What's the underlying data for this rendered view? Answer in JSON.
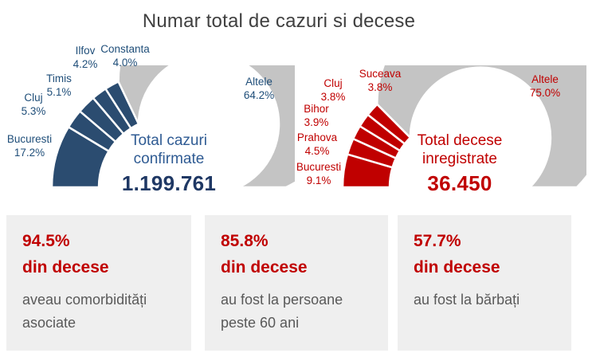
{
  "title": "Numar total de cazuri si decese",
  "colors": {
    "cases_accent": "#2B4C70",
    "deaths_accent": "#C00000",
    "other_gray": "#C4C4C4",
    "cases_label_text": "#1F4E79",
    "deaths_label_text": "#C00000",
    "cases_center_text": "#2F5B93",
    "cases_total_text": "#1F3864",
    "title_text": "#404040",
    "body_text": "#595959",
    "card_background": "#EFEFEF"
  },
  "chart_data": [
    {
      "type": "pie",
      "variant": "half-donut",
      "series_name": "cazuri confirmate",
      "center_line1": "Total cazuri",
      "center_line2": "confirmate",
      "total": "1.199.761",
      "angle_span_deg": 180,
      "legend_position": "outside-labels",
      "segments": [
        {
          "name": "Bucuresti",
          "value": 17.2,
          "label": "17.2%",
          "other": false
        },
        {
          "name": "Cluj",
          "value": 5.3,
          "label": "5.3%",
          "other": false
        },
        {
          "name": "Timis",
          "value": 5.1,
          "label": "5.1%",
          "other": false
        },
        {
          "name": "Ilfov",
          "value": 4.2,
          "label": "4.2%",
          "other": false
        },
        {
          "name": "Constanta",
          "value": 4.0,
          "label": "4.0%",
          "other": false
        },
        {
          "name": "Altele",
          "value": 64.2,
          "label": "64.2%",
          "other": true
        }
      ]
    },
    {
      "type": "pie",
      "variant": "half-donut",
      "series_name": "decese inregistrate",
      "center_line1": "Total decese",
      "center_line2": "inregistrate",
      "total": "36.450",
      "angle_span_deg": 180,
      "legend_position": "outside-labels",
      "segments": [
        {
          "name": "Bucuresti",
          "value": 9.1,
          "label": "9.1%",
          "other": false
        },
        {
          "name": "Prahova",
          "value": 4.5,
          "label": "4.5%",
          "other": false
        },
        {
          "name": "Bihor",
          "value": 3.9,
          "label": "3.9%",
          "other": false
        },
        {
          "name": "Cluj",
          "value": 3.8,
          "label": "3.8%",
          "other": false
        },
        {
          "name": "Suceava",
          "value": 3.8,
          "label": "3.8%",
          "other": false
        },
        {
          "name": "Altele",
          "value": 75.0,
          "label": "75.0%",
          "other": true
        }
      ]
    }
  ],
  "cards": [
    {
      "pct": "94.5%",
      "sub": "din decese",
      "body": "aveau comorbidități asociate"
    },
    {
      "pct": "85.8%",
      "sub": "din decese",
      "body": "au fost la persoane peste 60 ani"
    },
    {
      "pct": "57.7%",
      "sub": "din decese",
      "body": "au fost la bărbați"
    }
  ]
}
